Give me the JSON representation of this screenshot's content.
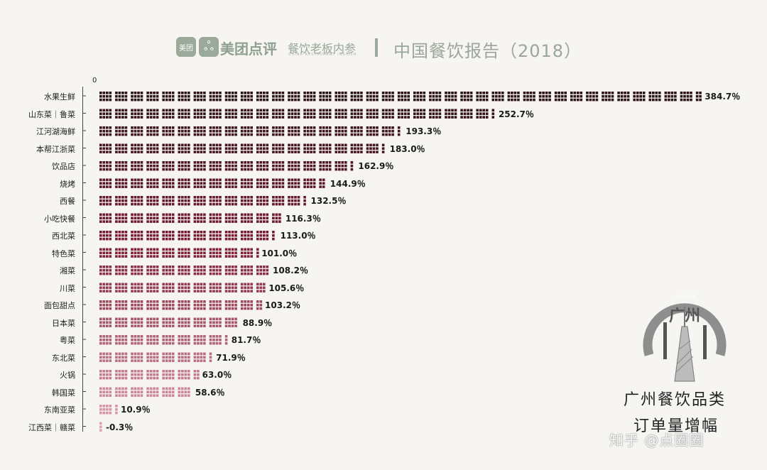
{
  "header": {
    "logo_badge": "美团",
    "logo_mark": "ஃ",
    "brand": "美团点评",
    "partner": "餐饮老板内参",
    "partner_en": "CHINA RESTAURANT INSIDER",
    "separator": "|",
    "report_title": "中国餐饮报告（2018）"
  },
  "stamp": {
    "city": "广州",
    "ring_text": "CHINA 2018"
  },
  "corner_title": {
    "line1": "广州餐饮品类",
    "line2": "订单量增幅"
  },
  "watermark": "知乎 @点圈圈",
  "colors": {
    "bar_dark": "#2b1217",
    "bar_mid": "#7c1b33",
    "bar_light": "#e2a0b2",
    "brand_green": "#8fa08f"
  },
  "chart_data": {
    "type": "bar",
    "orientation": "horizontal",
    "style": "pictogram-blocks",
    "axis_zero_label": "0",
    "categories": [
      "水果生鲜",
      "山东菜｜鲁菜",
      "江河湖海鲜",
      "本帮江浙菜",
      "饮品店",
      "烧烤",
      "西餐",
      "小吃快餐",
      "西北菜",
      "特色菜",
      "湘菜",
      "川菜",
      "面包甜点",
      "日本菜",
      "粤菜",
      "东北菜",
      "火锅",
      "韩国菜",
      "东南亚菜",
      "江西菜｜赣菜"
    ],
    "values": [
      384.7,
      252.7,
      193.3,
      183.0,
      162.9,
      144.9,
      132.5,
      116.3,
      113.0,
      101.0,
      108.2,
      105.6,
      103.2,
      88.9,
      81.7,
      71.9,
      63.0,
      58.6,
      10.9,
      -0.3
    ],
    "value_labels": [
      "384.7％",
      "252.7％",
      "193.3％",
      "183.0％",
      "162.9％",
      "144.9％",
      "132.5％",
      "116.3％",
      "113.0％",
      "101.0％",
      "108.2％",
      "105.6％",
      "103.2％",
      "88.9％",
      "81.7％",
      "71.9％",
      "63.0％",
      "58.6％",
      "10.9％",
      "-0.3％"
    ],
    "unit": "%",
    "xlim": [
      0,
      400
    ],
    "grid": false,
    "legend": "none"
  }
}
